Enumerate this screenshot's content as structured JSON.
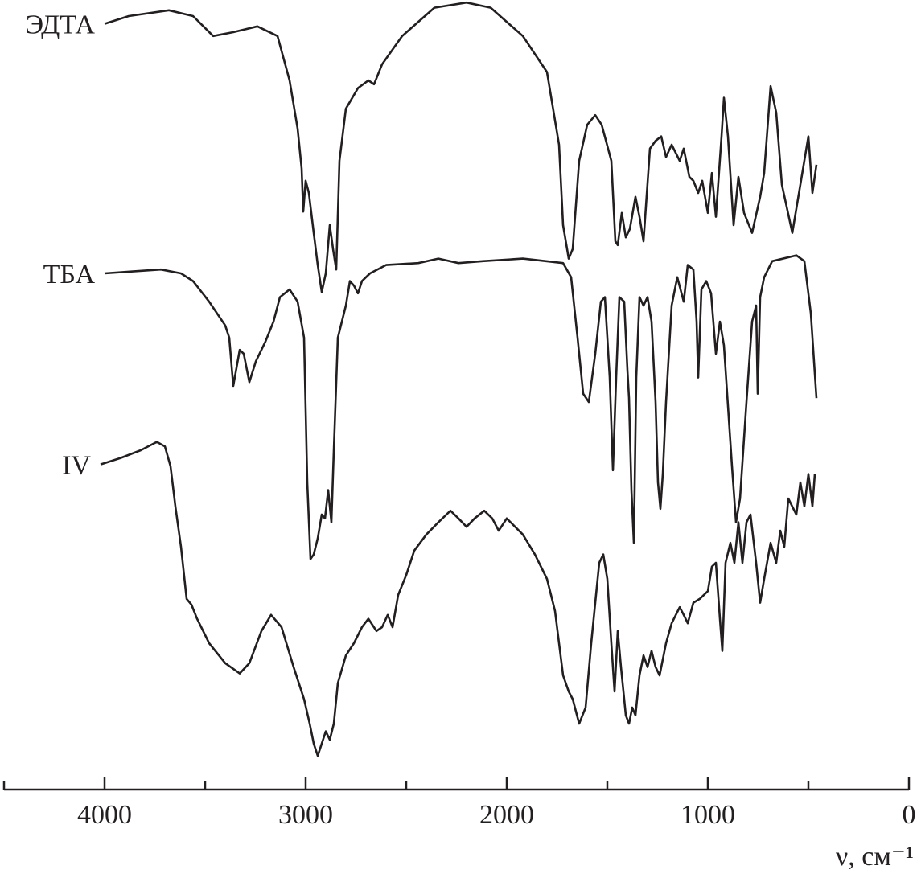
{
  "chart_data": {
    "type": "line",
    "xlabel": "ν, см⁻¹",
    "xlim": [
      4500,
      0
    ],
    "xticks": [
      4000,
      3000,
      2000,
      1000,
      0
    ],
    "xminor_ticks": [
      4500,
      3500,
      2500,
      1500,
      500
    ],
    "ylim": [
      0,
      121
    ],
    "series": [
      {
        "name": "ЭДТА",
        "color": "#231f20",
        "x": [
          4000,
          3880,
          3680,
          3560,
          3460,
          3360,
          3240,
          3140,
          3080,
          3040,
          3020,
          3012,
          3000,
          2984,
          2960,
          2940,
          2920,
          2900,
          2880,
          2864,
          2848,
          2832,
          2800,
          2740,
          2688,
          2660,
          2620,
          2520,
          2360,
          2200,
          2080,
          1920,
          1800,
          1740,
          1720,
          1692,
          1672,
          1640,
          1600,
          1560,
          1528,
          1480,
          1460,
          1448,
          1428,
          1408,
          1388,
          1360,
          1340,
          1320,
          1288,
          1260,
          1232,
          1208,
          1180,
          1140,
          1120,
          1092,
          1072,
          1048,
          1028,
          1000,
          980,
          960,
          932,
          920,
          900,
          872,
          848,
          820,
          780,
          740,
          720,
          688,
          660,
          632,
          580,
          540,
          500,
          480,
          460
        ],
        "values": [
          117.3,
          118.5,
          119.4,
          118.5,
          115.4,
          116,
          116.9,
          115.4,
          108.5,
          101,
          94.8,
          88.1,
          92.9,
          91,
          84.8,
          79.8,
          75.6,
          78.5,
          86,
          82.3,
          79.1,
          96,
          104.1,
          107.3,
          108.5,
          107.9,
          111,
          115.4,
          119.8,
          120.6,
          119.8,
          115.4,
          109.8,
          98.5,
          86,
          80.8,
          82.3,
          96,
          101.6,
          103.1,
          101.6,
          96,
          83.5,
          82.9,
          87.9,
          84.1,
          85.4,
          90.4,
          87.3,
          83.5,
          97.9,
          99.1,
          99.8,
          96.6,
          98.5,
          96,
          97.9,
          93.5,
          92.9,
          91,
          92.9,
          87.9,
          94.1,
          87.3,
          99.8,
          105.8,
          99.8,
          86,
          93.5,
          87.9,
          84.8,
          90.4,
          94.1,
          107.6,
          103.5,
          92.3,
          84.8,
          92.3,
          99.8,
          91,
          95.4
        ]
      },
      {
        "name": "ТБА",
        "color": "#231f20",
        "x": [
          4000,
          3860,
          3720,
          3620,
          3560,
          3480,
          3400,
          3380,
          3360,
          3328,
          3308,
          3280,
          3248,
          3200,
          3160,
          3128,
          3080,
          3040,
          3008,
          2992,
          2976,
          2960,
          2940,
          2920,
          2904,
          2888,
          2872,
          2860,
          2840,
          2820,
          2800,
          2780,
          2760,
          2740,
          2720,
          2680,
          2600,
          2440,
          2340,
          2240,
          2120,
          1920,
          1720,
          1680,
          1648,
          1620,
          1592,
          1560,
          1532,
          1512,
          1488,
          1472,
          1456,
          1440,
          1416,
          1400,
          1392,
          1380,
          1368,
          1356,
          1340,
          1320,
          1300,
          1280,
          1260,
          1248,
          1236,
          1224,
          1208,
          1180,
          1152,
          1120,
          1100,
          1072,
          1056,
          1048,
          1032,
          1008,
          984,
          960,
          940,
          920,
          880,
          860,
          840,
          808,
          780,
          760,
          752,
          740,
          720,
          680,
          560,
          520,
          488,
          460
        ],
        "values": [
          78.5,
          78.8,
          79.1,
          78.5,
          77.3,
          74.1,
          70.4,
          68.5,
          61,
          66.6,
          66,
          61.6,
          64.8,
          67.9,
          71,
          74.8,
          76,
          74.1,
          68.5,
          46,
          34.1,
          34.8,
          37.3,
          41,
          40.4,
          44.8,
          39.8,
          51,
          68.5,
          71,
          73.5,
          77.3,
          76.6,
          75.4,
          77.3,
          78.5,
          79.8,
          80.1,
          80.8,
          80.1,
          80.4,
          80.8,
          80.1,
          77.9,
          68.5,
          59.8,
          58.5,
          66,
          74.1,
          74.8,
          62.3,
          47.9,
          62.3,
          74.8,
          74.1,
          63.5,
          59.1,
          44.8,
          36.6,
          62.3,
          74.8,
          73.5,
          74.8,
          71,
          58.5,
          46,
          41.9,
          47.3,
          58.5,
          73.5,
          77.9,
          74.1,
          79.8,
          79.1,
          71,
          62.3,
          76,
          77.3,
          75.4,
          66,
          71,
          67.3,
          48.5,
          39.8,
          43.5,
          58.5,
          71,
          73.5,
          59.8,
          74.8,
          77.9,
          80.4,
          81.3,
          80.4,
          72.3,
          59.1
        ]
      },
      {
        "name": "IV",
        "color": "#231f20",
        "x": [
          4020,
          3920,
          3820,
          3740,
          3700,
          3672,
          3648,
          3620,
          3592,
          3568,
          3540,
          3480,
          3400,
          3328,
          3280,
          3220,
          3172,
          3120,
          3060,
          3008,
          2980,
          2960,
          2940,
          2920,
          2900,
          2880,
          2860,
          2840,
          2800,
          2760,
          2720,
          2688,
          2648,
          2620,
          2592,
          2568,
          2540,
          2500,
          2460,
          2400,
          2340,
          2280,
          2240,
          2200,
          2160,
          2112,
          2072,
          2040,
          2000,
          1920,
          1860,
          1800,
          1760,
          1740,
          1720,
          1692,
          1672,
          1640,
          1608,
          1580,
          1552,
          1540,
          1520,
          1500,
          1480,
          1464,
          1448,
          1432,
          1408,
          1392,
          1376,
          1360,
          1340,
          1320,
          1300,
          1280,
          1260,
          1240,
          1208,
          1180,
          1140,
          1120,
          1100,
          1072,
          1040,
          1000,
          980,
          960,
          940,
          928,
          912,
          888,
          868,
          848,
          828,
          808,
          788,
          760,
          740,
          720,
          688,
          660,
          640,
          620,
          600,
          560,
          540,
          520,
          500,
          480,
          468
        ],
        "values": [
          48.8,
          49.8,
          51,
          52.3,
          51.6,
          48.5,
          42.3,
          36,
          27.9,
          27,
          24.8,
          21,
          17.9,
          16.3,
          17.9,
          22.9,
          25.4,
          23.5,
          17.3,
          12.3,
          8.5,
          5.4,
          3.5,
          5.4,
          7.3,
          6,
          8.5,
          14.8,
          19.1,
          21,
          23.5,
          24.8,
          22.9,
          23.5,
          25.4,
          23.5,
          28.5,
          31.6,
          35.4,
          37.9,
          39.8,
          41.6,
          40.4,
          39.1,
          40.4,
          41.6,
          40.4,
          38.5,
          40.4,
          37.9,
          34.8,
          31,
          26,
          21,
          16,
          13.5,
          12.3,
          8.5,
          11,
          21,
          29.8,
          33.5,
          34.8,
          31,
          21,
          13.5,
          22.9,
          17.3,
          9.8,
          8.5,
          11,
          9.8,
          16,
          19.1,
          17.3,
          19.8,
          17.3,
          16,
          21,
          24.1,
          26.6,
          25.4,
          24.1,
          27.3,
          27.9,
          29.1,
          32.9,
          33.5,
          24.8,
          19.8,
          33.5,
          36.6,
          33.5,
          39.8,
          33.5,
          39.8,
          41,
          33.5,
          27.3,
          31,
          36.6,
          33.5,
          38.5,
          36,
          43.5,
          41,
          46,
          42.3,
          47.3,
          42.3,
          47.3
        ]
      }
    ]
  }
}
